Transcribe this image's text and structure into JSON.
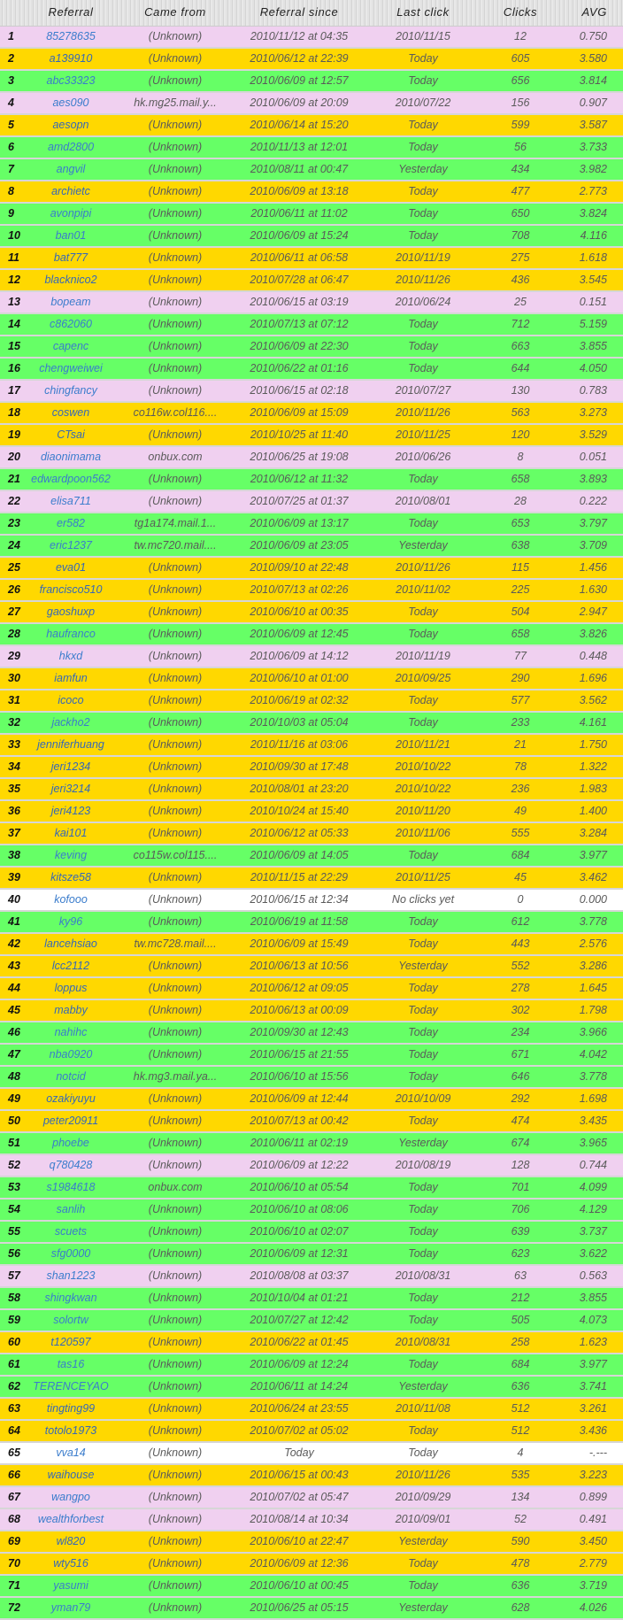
{
  "header": {
    "num": "",
    "referral": "Referral",
    "came_from": "Came from",
    "since": "Referral since",
    "last_click": "Last click",
    "clicks": "Clicks",
    "avg": "AVG"
  },
  "colors": {
    "p": "#f0d0f0",
    "y": "#ffd800",
    "g": "#66ff66",
    "w": "#ffffff"
  },
  "rows": [
    [
      "1",
      "85278635",
      "(Unknown)",
      "2010/11/12 at 04:35",
      "2010/11/15",
      "12",
      "0.750",
      "p"
    ],
    [
      "2",
      "a139910",
      "(Unknown)",
      "2010/06/12 at 22:39",
      "Today",
      "605",
      "3.580",
      "y"
    ],
    [
      "3",
      "abc33323",
      "(Unknown)",
      "2010/06/09 at 12:57",
      "Today",
      "656",
      "3.814",
      "g"
    ],
    [
      "4",
      "aes090",
      "hk.mg25.mail.y...",
      "2010/06/09 at 20:09",
      "2010/07/22",
      "156",
      "0.907",
      "p"
    ],
    [
      "5",
      "aesopn",
      "(Unknown)",
      "2010/06/14 at 15:20",
      "Today",
      "599",
      "3.587",
      "y"
    ],
    [
      "6",
      "amd2800",
      "(Unknown)",
      "2010/11/13 at 12:01",
      "Today",
      "56",
      "3.733",
      "g"
    ],
    [
      "7",
      "angvil",
      "(Unknown)",
      "2010/08/11 at 00:47",
      "Yesterday",
      "434",
      "3.982",
      "g"
    ],
    [
      "8",
      "archietc",
      "(Unknown)",
      "2010/06/09 at 13:18",
      "Today",
      "477",
      "2.773",
      "y"
    ],
    [
      "9",
      "avonpipi",
      "(Unknown)",
      "2010/06/11 at 11:02",
      "Today",
      "650",
      "3.824",
      "g"
    ],
    [
      "10",
      "ban01",
      "(Unknown)",
      "2010/06/09 at 15:24",
      "Today",
      "708",
      "4.116",
      "g"
    ],
    [
      "11",
      "bat777",
      "(Unknown)",
      "2010/06/11 at 06:58",
      "2010/11/19",
      "275",
      "1.618",
      "y"
    ],
    [
      "12",
      "blacknico2",
      "(Unknown)",
      "2010/07/28 at 06:47",
      "2010/11/26",
      "436",
      "3.545",
      "y"
    ],
    [
      "13",
      "bopeam",
      "(Unknown)",
      "2010/06/15 at 03:19",
      "2010/06/24",
      "25",
      "0.151",
      "p"
    ],
    [
      "14",
      "c862060",
      "(Unknown)",
      "2010/07/13 at 07:12",
      "Today",
      "712",
      "5.159",
      "g"
    ],
    [
      "15",
      "capenc",
      "(Unknown)",
      "2010/06/09 at 22:30",
      "Today",
      "663",
      "3.855",
      "g"
    ],
    [
      "16",
      "chengweiwei",
      "(Unknown)",
      "2010/06/22 at 01:16",
      "Today",
      "644",
      "4.050",
      "g"
    ],
    [
      "17",
      "chingfancy",
      "(Unknown)",
      "2010/06/15 at 02:18",
      "2010/07/27",
      "130",
      "0.783",
      "p"
    ],
    [
      "18",
      "coswen",
      "co116w.col116....",
      "2010/06/09 at 15:09",
      "2010/11/26",
      "563",
      "3.273",
      "y"
    ],
    [
      "19",
      "CTsai",
      "(Unknown)",
      "2010/10/25 at 11:40",
      "2010/11/25",
      "120",
      "3.529",
      "y"
    ],
    [
      "20",
      "diaonimama",
      "onbux.com",
      "2010/06/25 at 19:08",
      "2010/06/26",
      "8",
      "0.051",
      "p"
    ],
    [
      "21",
      "edwardpoon562",
      "(Unknown)",
      "2010/06/12 at 11:32",
      "Today",
      "658",
      "3.893",
      "g"
    ],
    [
      "22",
      "elisa711",
      "(Unknown)",
      "2010/07/25 at 01:37",
      "2010/08/01",
      "28",
      "0.222",
      "p"
    ],
    [
      "23",
      "er582",
      "tg1a174.mail.1...",
      "2010/06/09 at 13:17",
      "Today",
      "653",
      "3.797",
      "g"
    ],
    [
      "24",
      "eric1237",
      "tw.mc720.mail....",
      "2010/06/09 at 23:05",
      "Yesterday",
      "638",
      "3.709",
      "g"
    ],
    [
      "25",
      "eva01",
      "(Unknown)",
      "2010/09/10 at 22:48",
      "2010/11/26",
      "115",
      "1.456",
      "y"
    ],
    [
      "26",
      "francisco510",
      "(Unknown)",
      "2010/07/13 at 02:26",
      "2010/11/02",
      "225",
      "1.630",
      "y"
    ],
    [
      "27",
      "gaoshuxp",
      "(Unknown)",
      "2010/06/10 at 00:35",
      "Today",
      "504",
      "2.947",
      "y"
    ],
    [
      "28",
      "haufranco",
      "(Unknown)",
      "2010/06/09 at 12:45",
      "Today",
      "658",
      "3.826",
      "g"
    ],
    [
      "29",
      "hkxd",
      "(Unknown)",
      "2010/06/09 at 14:12",
      "2010/11/19",
      "77",
      "0.448",
      "p"
    ],
    [
      "30",
      "iamfun",
      "(Unknown)",
      "2010/06/10 at 01:00",
      "2010/09/25",
      "290",
      "1.696",
      "y"
    ],
    [
      "31",
      "icoco",
      "(Unknown)",
      "2010/06/19 at 02:32",
      "Today",
      "577",
      "3.562",
      "y"
    ],
    [
      "32",
      "jackho2",
      "(Unknown)",
      "2010/10/03 at 05:04",
      "Today",
      "233",
      "4.161",
      "g"
    ],
    [
      "33",
      "jenniferhuang",
      "(Unknown)",
      "2010/11/16 at 03:06",
      "2010/11/21",
      "21",
      "1.750",
      "y"
    ],
    [
      "34",
      "jeri1234",
      "(Unknown)",
      "2010/09/30 at 17:48",
      "2010/10/22",
      "78",
      "1.322",
      "y"
    ],
    [
      "35",
      "jeri3214",
      "(Unknown)",
      "2010/08/01 at 23:20",
      "2010/10/22",
      "236",
      "1.983",
      "y"
    ],
    [
      "36",
      "jeri4123",
      "(Unknown)",
      "2010/10/24 at 15:40",
      "2010/11/20",
      "49",
      "1.400",
      "y"
    ],
    [
      "37",
      "kai101",
      "(Unknown)",
      "2010/06/12 at 05:33",
      "2010/11/06",
      "555",
      "3.284",
      "y"
    ],
    [
      "38",
      "keving",
      "co115w.col115....",
      "2010/06/09 at 14:05",
      "Today",
      "684",
      "3.977",
      "g"
    ],
    [
      "39",
      "kitsze58",
      "(Unknown)",
      "2010/11/15 at 22:29",
      "2010/11/25",
      "45",
      "3.462",
      "y"
    ],
    [
      "40",
      "kofooo",
      "(Unknown)",
      "2010/06/15 at 12:34",
      "No clicks yet",
      "0",
      "0.000",
      "w"
    ],
    [
      "41",
      "ky96",
      "(Unknown)",
      "2010/06/19 at 11:58",
      "Today",
      "612",
      "3.778",
      "g"
    ],
    [
      "42",
      "lancehsiao",
      "tw.mc728.mail....",
      "2010/06/09 at 15:49",
      "Today",
      "443",
      "2.576",
      "y"
    ],
    [
      "43",
      "lcc2112",
      "(Unknown)",
      "2010/06/13 at 10:56",
      "Yesterday",
      "552",
      "3.286",
      "y"
    ],
    [
      "44",
      "loppus",
      "(Unknown)",
      "2010/06/12 at 09:05",
      "Today",
      "278",
      "1.645",
      "y"
    ],
    [
      "45",
      "mabby",
      "(Unknown)",
      "2010/06/13 at 00:09",
      "Today",
      "302",
      "1.798",
      "y"
    ],
    [
      "46",
      "nahihc",
      "(Unknown)",
      "2010/09/30 at 12:43",
      "Today",
      "234",
      "3.966",
      "g"
    ],
    [
      "47",
      "nba0920",
      "(Unknown)",
      "2010/06/15 at 21:55",
      "Today",
      "671",
      "4.042",
      "g"
    ],
    [
      "48",
      "notcid",
      "hk.mg3.mail.ya...",
      "2010/06/10 at 15:56",
      "Today",
      "646",
      "3.778",
      "g"
    ],
    [
      "49",
      "ozakiyuyu",
      "(Unknown)",
      "2010/06/09 at 12:44",
      "2010/10/09",
      "292",
      "1.698",
      "y"
    ],
    [
      "50",
      "peter20911",
      "(Unknown)",
      "2010/07/13 at 00:42",
      "Today",
      "474",
      "3.435",
      "y"
    ],
    [
      "51",
      "phoebe",
      "(Unknown)",
      "2010/06/11 at 02:19",
      "Yesterday",
      "674",
      "3.965",
      "g"
    ],
    [
      "52",
      "q780428",
      "(Unknown)",
      "2010/06/09 at 12:22",
      "2010/08/19",
      "128",
      "0.744",
      "p"
    ],
    [
      "53",
      "s1984618",
      "onbux.com",
      "2010/06/10 at 05:54",
      "Today",
      "701",
      "4.099",
      "g"
    ],
    [
      "54",
      "sanlih",
      "(Unknown)",
      "2010/06/10 at 08:06",
      "Today",
      "706",
      "4.129",
      "g"
    ],
    [
      "55",
      "scuets",
      "(Unknown)",
      "2010/06/10 at 02:07",
      "Today",
      "639",
      "3.737",
      "g"
    ],
    [
      "56",
      "sfg0000",
      "(Unknown)",
      "2010/06/09 at 12:31",
      "Today",
      "623",
      "3.622",
      "g"
    ],
    [
      "57",
      "shan1223",
      "(Unknown)",
      "2010/08/08 at 03:37",
      "2010/08/31",
      "63",
      "0.563",
      "p"
    ],
    [
      "58",
      "shingkwan",
      "(Unknown)",
      "2010/10/04 at 01:21",
      "Today",
      "212",
      "3.855",
      "g"
    ],
    [
      "59",
      "solortw",
      "(Unknown)",
      "2010/07/27 at 12:42",
      "Today",
      "505",
      "4.073",
      "g"
    ],
    [
      "60",
      "t120597",
      "(Unknown)",
      "2010/06/22 at 01:45",
      "2010/08/31",
      "258",
      "1.623",
      "y"
    ],
    [
      "61",
      "tas16",
      "(Unknown)",
      "2010/06/09 at 12:24",
      "Today",
      "684",
      "3.977",
      "g"
    ],
    [
      "62",
      "TERENCEYAO",
      "(Unknown)",
      "2010/06/11 at 14:24",
      "Yesterday",
      "636",
      "3.741",
      "g"
    ],
    [
      "63",
      "tingting99",
      "(Unknown)",
      "2010/06/24 at 23:55",
      "2010/11/08",
      "512",
      "3.261",
      "y"
    ],
    [
      "64",
      "totolo1973",
      "(Unknown)",
      "2010/07/02 at 05:02",
      "Today",
      "512",
      "3.436",
      "y"
    ],
    [
      "65",
      "vva14",
      "(Unknown)",
      "Today",
      "Today",
      "4",
      "-.---",
      "w"
    ],
    [
      "66",
      "waihouse",
      "(Unknown)",
      "2010/06/15 at 00:43",
      "2010/11/26",
      "535",
      "3.223",
      "y"
    ],
    [
      "67",
      "wangpo",
      "(Unknown)",
      "2010/07/02 at 05:47",
      "2010/09/29",
      "134",
      "0.899",
      "p"
    ],
    [
      "68",
      "wealthforbest",
      "(Unknown)",
      "2010/08/14 at 10:34",
      "2010/09/01",
      "52",
      "0.491",
      "p"
    ],
    [
      "69",
      "wl820",
      "(Unknown)",
      "2010/06/10 at 22:47",
      "Yesterday",
      "590",
      "3.450",
      "y"
    ],
    [
      "70",
      "wty516",
      "(Unknown)",
      "2010/06/09 at 12:36",
      "Today",
      "478",
      "2.779",
      "y"
    ],
    [
      "71",
      "yasumi",
      "(Unknown)",
      "2010/06/10 at 00:45",
      "Today",
      "636",
      "3.719",
      "g"
    ],
    [
      "72",
      "yman79",
      "(Unknown)",
      "2010/06/25 at 05:15",
      "Yesterday",
      "628",
      "4.026",
      "g"
    ]
  ]
}
